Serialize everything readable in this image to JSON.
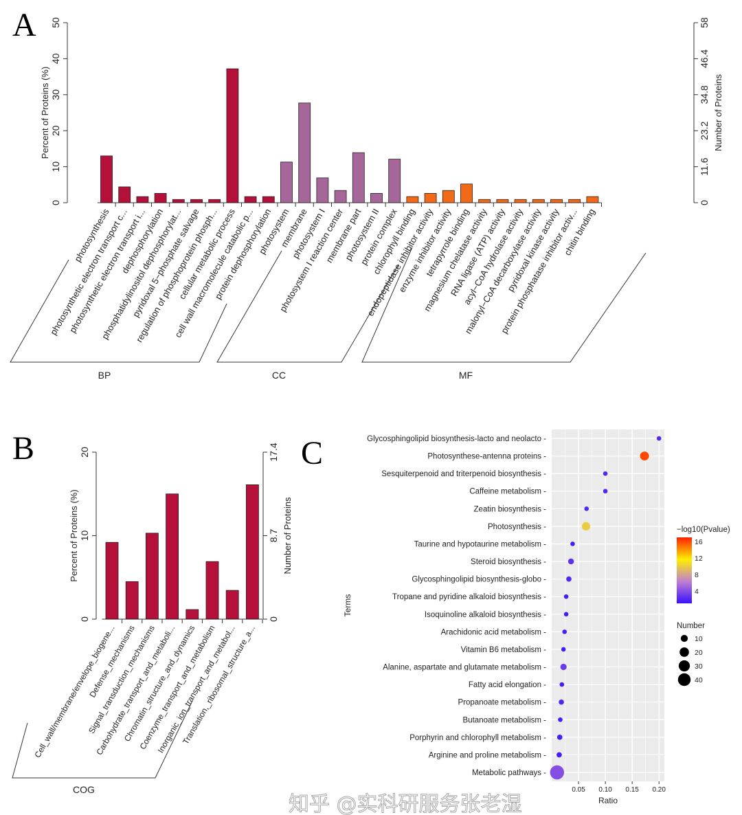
{
  "chart_data": [
    {
      "panel": "A",
      "type": "bar",
      "ylabel": "Percent of Proteins (%)",
      "y2label": "Number of Proteins",
      "ylim": [
        0,
        50
      ],
      "yticks": [
        0,
        10,
        20,
        30,
        40,
        50
      ],
      "y2ticks": [
        "0",
        "11.6",
        "23.2",
        "34.8",
        "46.4",
        "58"
      ],
      "groups": [
        {
          "name": "BP",
          "color": "#b5103a",
          "categories": [
            "photosynthesis",
            "photosynthetic electron transport c...",
            "photosynthetic electron transport i...",
            "dephosphorylation",
            "phosphatidylinositol dephosphorylat...",
            "pyridoxal 5−phosphate salvage",
            "regulation of phosphoprotein phosph...",
            "cellular metabolic process",
            "cell wall macromolecule catabolic p...",
            "protein dephosphorylation"
          ],
          "values": [
            13,
            4.4,
            1.7,
            2.6,
            0.9,
            0.9,
            0.9,
            37.2,
            1.7,
            1.7
          ]
        },
        {
          "name": "CC",
          "color": "#a5669a",
          "categories": [
            "photosystem",
            "membrane",
            "photosystem I",
            "photosystem I reaction center",
            "membrane part",
            "photosystem II",
            "protein complex"
          ],
          "values": [
            11.3,
            27.7,
            6.9,
            3.4,
            13.9,
            2.6,
            12.1
          ]
        },
        {
          "name": "MF",
          "color": "#f26a18",
          "categories": [
            "chlorophyll binding",
            "endopeptidase inhibitor activity",
            "enzyme inhibitor activity",
            "tetrapyrrole binding",
            "magnesium chelatase activity",
            "RNA ligase (ATP) activity",
            "acyl−CoA hydrolase activity",
            "malonyl−CoA decarboxylase activity",
            "pyridoxal kinase activity",
            "protein phosphatase inhibitor activ...",
            "chitin binding"
          ],
          "values": [
            1.7,
            2.6,
            3.4,
            5.2,
            0.9,
            0.9,
            0.9,
            0.9,
            0.9,
            0.9,
            1.7
          ]
        }
      ]
    },
    {
      "panel": "B",
      "type": "bar",
      "ylabel": "Percent of Proteins (%)",
      "y2label": "Number of Proteins",
      "ylim": [
        0,
        20
      ],
      "yticks": [
        0,
        10,
        20
      ],
      "y2ticks": [
        "0",
        "8.7",
        "17.4"
      ],
      "groups": [
        {
          "name": "COG",
          "color": "#b5103a",
          "categories": [
            "Cell_wall/membrane/envelope_biogene...",
            "Defense_mechanisms",
            "Signal_transduction_mechanisms",
            "Carbohydrate_transport_and_metaboli...",
            "Chromatin_structure_and_dynamics",
            "Coenzyme_transport_and_metabolism",
            "Inorganic_ion_transport_and_metabol...",
            "Translation,_ribosomal_structure_a..."
          ],
          "values": [
            9.2,
            4.5,
            10.3,
            15.0,
            1.15,
            6.9,
            3.45,
            16.1
          ]
        }
      ]
    },
    {
      "panel": "C",
      "type": "scatter",
      "xlabel": "Ratio",
      "ylabel": "Terms",
      "xlim": [
        0,
        0.21
      ],
      "xticks": [
        0.05,
        0.1,
        0.15,
        0.2
      ],
      "color_legend": {
        "title": "−log10(Pvalue)",
        "ticks": [
          4,
          8,
          12,
          16
        ],
        "range": [
          1,
          17
        ],
        "colors": [
          "#3a10ff",
          "#c080d0",
          "#ffee00",
          "#ff2000"
        ]
      },
      "size_legend": {
        "title": "Number",
        "ticks": [
          10,
          20,
          30,
          40
        ]
      },
      "terms": [
        "Glycosphingolipid biosynthesis-lacto and neolacto",
        "Photosynthese-antenna proteins",
        "Sesquiterpenoid and triterpenoid biosynthesis",
        "Caffeine metabolism",
        "Zeatin biosynthesis",
        "Photosynthesis",
        "Taurine and hypotaurine metabolism",
        "Steroid biosynthesis",
        "Glycosphingolipid biosynthesis-globo",
        "Tropane and pyridine alkaloid biosynthesis",
        "Isoquinoline alkaloid biosynthesis",
        "Arachidonic acid metabolism",
        "Vitamin B6 metabolism",
        "Alanine, aspartate and glutamate metabolism",
        "Fatty acid elongation",
        "Propanoate metabolism",
        "Butanoate metabolism",
        "Porphyrin and chlorophyll metabolism",
        "Arginine and proline metabolism",
        "Metabolic pathways"
      ],
      "ratio": [
        0.2,
        0.173,
        0.1,
        0.1,
        0.065,
        0.064,
        0.039,
        0.036,
        0.032,
        0.027,
        0.027,
        0.024,
        0.022,
        0.022,
        0.019,
        0.018,
        0.016,
        0.015,
        0.014,
        0.01
      ],
      "number": [
        1,
        12,
        1,
        1,
        1,
        10,
        1,
        3,
        2,
        1,
        1,
        1,
        1,
        4,
        1,
        2,
        1,
        2,
        2,
        40
      ],
      "neglog10p": [
        2,
        16,
        2,
        2,
        2,
        10,
        1.5,
        2.5,
        2,
        1.5,
        1.5,
        1.5,
        1.5,
        3,
        1.5,
        2,
        1.5,
        1.5,
        1.5,
        4
      ]
    }
  ],
  "panel_labels": [
    "A",
    "B",
    "C"
  ],
  "watermark": "知乎 @实科研服务张老湿"
}
